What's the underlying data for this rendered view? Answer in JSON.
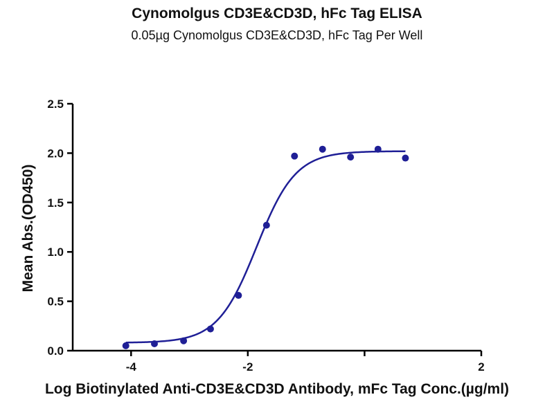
{
  "chart_data": {
    "type": "scatter",
    "title": "Cynomolgus CD3E&CD3D, hFc Tag ELISA",
    "subtitle": "0.05µg Cynomolgus CD3E&CD3D, hFc Tag Per Well",
    "xlabel": "Log Biotinylated Anti-CD3E&CD3D Antibody, mFc Tag Conc.(µg/ml)",
    "ylabel": "Mean Abs.(OD450)",
    "xlim": [
      -5,
      2
    ],
    "ylim": [
      0,
      2.5
    ],
    "x_ticks": [
      -4,
      -2,
      0,
      2
    ],
    "x_tick_labels": [
      "-4",
      "-2",
      "",
      "2"
    ],
    "y_ticks": [
      0,
      0.5,
      1.0,
      1.5,
      2.0,
      2.5
    ],
    "y_tick_labels": [
      "0.0",
      "0.5",
      "1.0",
      "1.5",
      "2.0",
      "2.5"
    ],
    "grid": false,
    "series": [
      {
        "points": [
          {
            "x": -4.09,
            "y": 0.05
          },
          {
            "x": -3.6,
            "y": 0.07
          },
          {
            "x": -3.1,
            "y": 0.1
          },
          {
            "x": -2.64,
            "y": 0.22
          },
          {
            "x": -2.16,
            "y": 0.56
          },
          {
            "x": -1.68,
            "y": 1.27
          },
          {
            "x": -1.2,
            "y": 1.97
          },
          {
            "x": -0.72,
            "y": 2.04
          },
          {
            "x": -0.24,
            "y": 1.96
          },
          {
            "x": 0.23,
            "y": 2.04
          },
          {
            "x": 0.7,
            "y": 1.95
          }
        ],
        "fit": {
          "model": "4PL",
          "bottom": 0.08,
          "top": 2.02,
          "log_ec50": -1.85,
          "hill_slope": 1.3,
          "x_range": [
            -4.09,
            0.7
          ]
        },
        "color": "#1f1f96"
      }
    ]
  }
}
